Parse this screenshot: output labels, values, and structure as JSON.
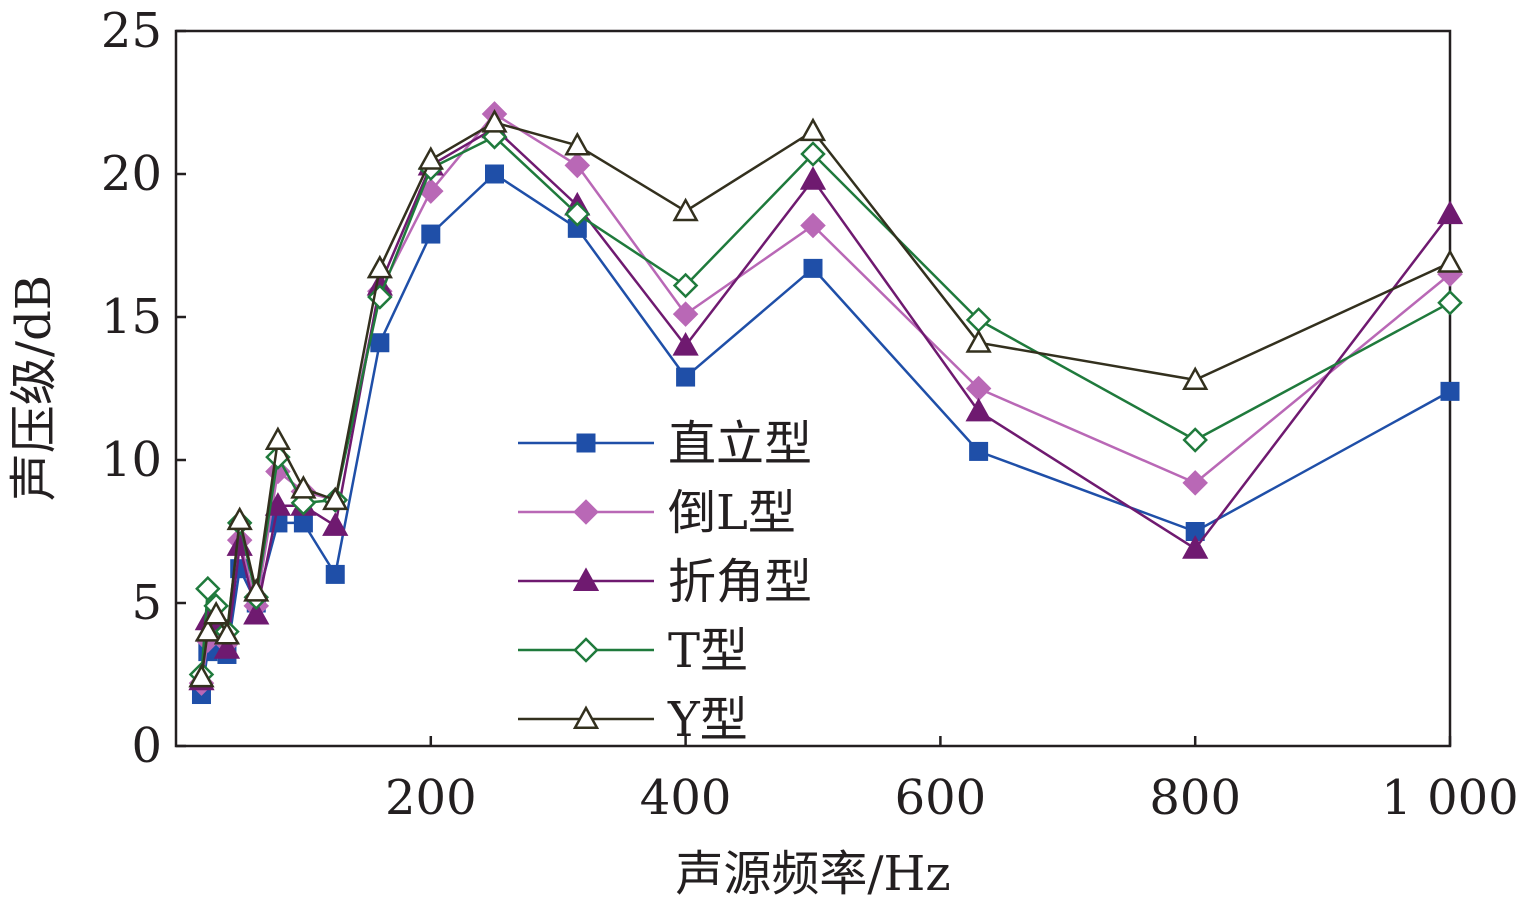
{
  "chart_data": {
    "type": "line",
    "xlabel": "声源频率/Hz",
    "ylabel": "声压级/dB",
    "xlim": [
      0,
      1000
    ],
    "ylim": [
      0,
      25
    ],
    "x_ticks": [
      200,
      400,
      600,
      800,
      1000
    ],
    "x_tick_labels": [
      "200",
      "400",
      "600",
      "800",
      "1 000"
    ],
    "y_ticks": [
      0,
      5,
      10,
      15,
      20,
      25
    ],
    "y_tick_labels": [
      "0",
      "5",
      "10",
      "15",
      "20",
      "25"
    ],
    "grid": false,
    "legend_position": "center-left",
    "x": [
      20,
      25,
      31.5,
      40,
      50,
      63,
      80,
      100,
      125,
      160,
      200,
      250,
      315,
      400,
      500,
      630,
      800,
      1000
    ],
    "series": [
      {
        "name": "直立型",
        "color": "#1f4fa8",
        "marker": "square-filled",
        "values": [
          1.8,
          3.3,
          3.4,
          3.2,
          6.2,
          5.0,
          7.8,
          7.8,
          6.0,
          14.1,
          17.9,
          20.0,
          18.1,
          12.9,
          16.7,
          10.3,
          7.5,
          12.4
        ]
      },
      {
        "name": "倒L型",
        "color": "#b968b6",
        "marker": "diamond-filled",
        "values": [
          2.2,
          3.7,
          4.0,
          3.6,
          7.2,
          4.9,
          9.6,
          8.9,
          8.6,
          15.9,
          19.4,
          22.1,
          20.3,
          15.1,
          18.2,
          12.5,
          9.2,
          16.5
        ]
      },
      {
        "name": "折角型",
        "color": "#6f1a70",
        "marker": "triangle-filled",
        "values": [
          2.3,
          4.4,
          4.5,
          3.4,
          7.0,
          4.6,
          8.4,
          8.4,
          7.7,
          16.1,
          20.3,
          21.6,
          18.9,
          14.0,
          19.8,
          11.7,
          6.9,
          18.6
        ]
      },
      {
        "name": "T型",
        "color": "#1f7a3c",
        "marker": "diamond-open",
        "values": [
          2.5,
          5.5,
          4.9,
          4.0,
          7.8,
          5.2,
          10.1,
          8.5,
          8.6,
          15.7,
          20.2,
          21.3,
          18.6,
          16.1,
          20.7,
          14.9,
          10.7,
          15.5
        ]
      },
      {
        "name": "Y型",
        "color": "#33301e",
        "marker": "triangle-open",
        "values": [
          2.4,
          4.0,
          4.6,
          3.9,
          7.9,
          5.4,
          10.7,
          9.0,
          8.6,
          16.7,
          20.5,
          21.8,
          21.0,
          18.7,
          21.5,
          14.1,
          12.8,
          16.9
        ]
      }
    ]
  }
}
